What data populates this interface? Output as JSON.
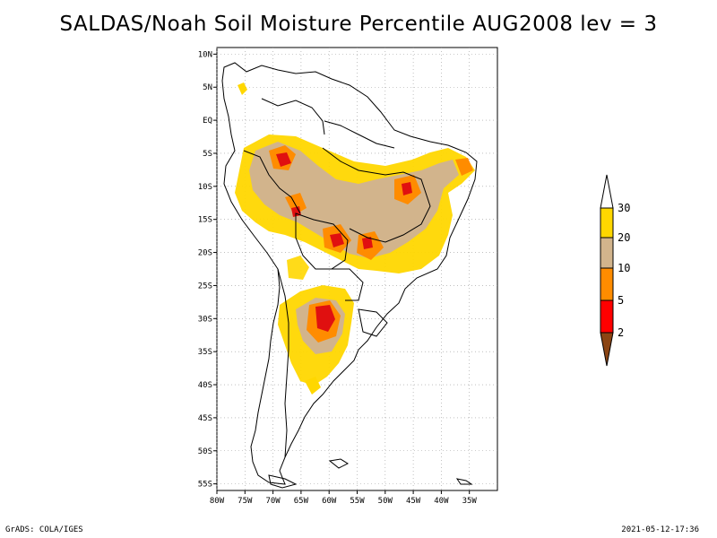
{
  "title": "SALDAS/Noah Soil Moisture Percentile AUG2008 lev = 3",
  "map": {
    "lon_range": [
      -80,
      -30
    ],
    "lat_range": [
      -56,
      11
    ],
    "lat_ticks": [
      "10N",
      "5N",
      "EQ",
      "5S",
      "10S",
      "15S",
      "20S",
      "25S",
      "30S",
      "35S",
      "40S",
      "45S",
      "50S",
      "55S"
    ],
    "lon_ticks": [
      "80W",
      "75W",
      "70W",
      "65W",
      "60W",
      "55W",
      "50W",
      "45W",
      "40W",
      "35W"
    ]
  },
  "legend": {
    "levels": [
      "2",
      "5",
      "10",
      "20",
      "30"
    ],
    "colors": {
      "below_2": "#8b4513",
      "2_5": "#ff0000",
      "5_10": "#ff8c00",
      "10_20": "#d2b48c",
      "20_30": "#ffd700",
      "above_30": "#ffffff"
    }
  },
  "footer": {
    "left": "GrADS: COLA/IGES",
    "right": "2021-05-12-17:36"
  }
}
